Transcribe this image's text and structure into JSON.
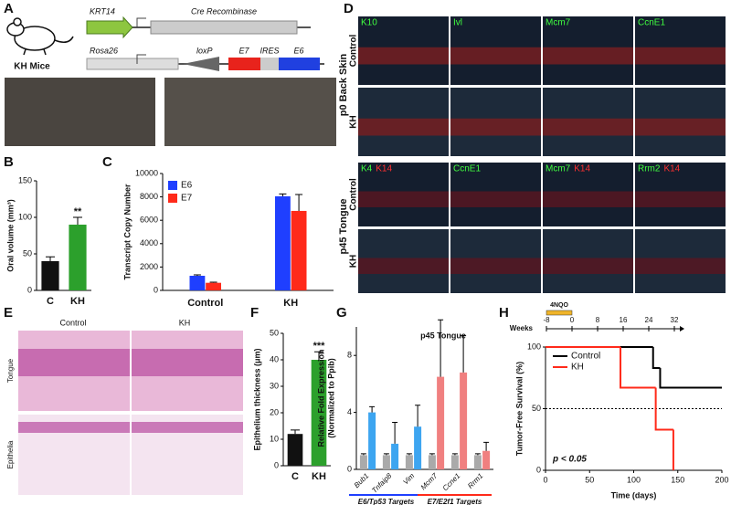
{
  "panel_a": {
    "letter": "A",
    "mouse_label": "KH Mice",
    "construct1": {
      "promoter": "KRT14",
      "gene": "Cre Recombinase"
    },
    "construct2": {
      "locus": "Rosa26",
      "site": "loxP",
      "genes": [
        "E7",
        "IRES",
        "E6"
      ]
    }
  },
  "panel_d": {
    "letter": "D",
    "blocks": [
      {
        "label": "p0 Back Skin",
        "rows": [
          "Control",
          "KH"
        ],
        "columns": [
          [
            "K10"
          ],
          [
            "Ivl"
          ],
          [
            "Mcm7"
          ],
          [
            "CcnE1"
          ]
        ]
      },
      {
        "label": "p45 Tongue",
        "rows": [
          "Control",
          "KH"
        ],
        "columns": [
          [
            "K4",
            "K14"
          ],
          [
            "CcnE1"
          ],
          [
            "Mcm7",
            "K14"
          ],
          [
            "Rrm2",
            "K14"
          ]
        ]
      }
    ]
  },
  "panel_e": {
    "letter": "E",
    "columns": [
      "Control",
      "KH"
    ],
    "rows": [
      "Tongue",
      "Epithelia"
    ]
  },
  "chart_data": [
    {
      "letter": "B",
      "type": "bar",
      "ylabel": "Oral volume (mm³)",
      "categories": [
        "C",
        "KH"
      ],
      "values": [
        40,
        90
      ],
      "errors": [
        6,
        10
      ],
      "colors": [
        "#111111",
        "#2ca02c"
      ],
      "ylim": [
        0,
        150
      ],
      "yticks": [
        0,
        50,
        100,
        150
      ],
      "annotation": "**"
    },
    {
      "letter": "C",
      "type": "grouped-bar",
      "ylabel": "Transcript Copy Number",
      "categories": [
        "Control",
        "KH"
      ],
      "series": [
        {
          "name": "E6",
          "color": "#1f3fff",
          "values": [
            1250,
            8050
          ],
          "errors": [
            80,
            200
          ]
        },
        {
          "name": "E7",
          "color": "#ff2a1a",
          "values": [
            650,
            6800
          ],
          "errors": [
            50,
            1400
          ]
        }
      ],
      "ylim": [
        0,
        10000
      ],
      "yticks": [
        0,
        2000,
        4000,
        6000,
        8000,
        10000
      ]
    },
    {
      "letter": "F",
      "type": "bar",
      "ylabel": "Epithelium thickness (μm)",
      "categories": [
        "C",
        "KH"
      ],
      "values": [
        12,
        40
      ],
      "errors": [
        1.5,
        3
      ],
      "colors": [
        "#111111",
        "#2ca02c"
      ],
      "ylim": [
        0,
        50
      ],
      "yticks": [
        0,
        10,
        20,
        30,
        40,
        50
      ],
      "annotation": "***"
    },
    {
      "letter": "G",
      "type": "paired-bar",
      "title": "p45 Tongue",
      "ylabel": [
        "Relative Fold Expression",
        "(Normalized to Ppib)"
      ],
      "categories": [
        "Bub1",
        "Tnfaip8",
        "Vim",
        "Mcm7",
        "Ccne1",
        "Rrm1"
      ],
      "series": [
        {
          "color": "#aaaaaa",
          "values": [
            1,
            1,
            1,
            1,
            1,
            1
          ],
          "errors": [
            0.1,
            0.1,
            0.1,
            0.1,
            0.1,
            0.1
          ]
        },
        {
          "colors": [
            "#3da5f0",
            "#3da5f0",
            "#3da5f0",
            "#f08080",
            "#f08080",
            "#f08080"
          ],
          "values": [
            4,
            1.8,
            3,
            6.5,
            6.8,
            1.3
          ],
          "errors": [
            0.4,
            1.5,
            1.5,
            4,
            2.6,
            0.6
          ]
        }
      ],
      "groups": [
        {
          "label": "E6/Tp53 Targets",
          "color": "#1f3fff"
        },
        {
          "label": "E7/E2f1 Targets",
          "color": "#ff2a1a"
        }
      ],
      "ylim": [
        0,
        10
      ],
      "yticks": [
        0,
        4,
        8
      ]
    },
    {
      "letter": "H",
      "type": "step",
      "xlabel": "Time (days)",
      "ylabel": "Tumor-Free Survival (%)",
      "series": [
        {
          "name": "Control",
          "color": "#000000",
          "x": [
            0,
            122,
            130,
            200
          ],
          "values": [
            100,
            83,
            67,
            67
          ]
        },
        {
          "name": "KH",
          "color": "#ff2a1a",
          "x": [
            0,
            85,
            125,
            145
          ],
          "values": [
            100,
            67,
            33,
            0
          ]
        }
      ],
      "xlim": [
        0,
        200
      ],
      "xticks": [
        0,
        50,
        100,
        150,
        200
      ],
      "ylim": [
        0,
        100
      ],
      "yticks": [
        0,
        50,
        100
      ],
      "hline": 50,
      "annotation": "p < 0.05",
      "weeks": {
        "label": "Weeks",
        "lim": [
          -8,
          32
        ],
        "ticks": [
          -8,
          0,
          8,
          16,
          24,
          32
        ],
        "treatment": {
          "label": "4NQO",
          "range": [
            -8,
            0
          ]
        }
      }
    }
  ]
}
